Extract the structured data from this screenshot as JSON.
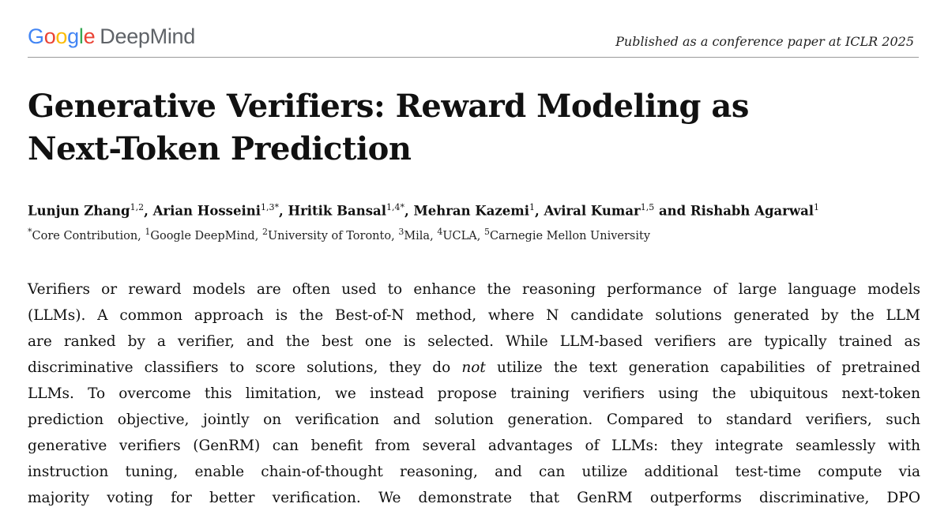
{
  "header": {
    "logo_parts": [
      "G",
      "o",
      "o",
      "g",
      "l",
      "e"
    ],
    "logo_suffix": "DeepMind",
    "venue": "Published as a conference paper at ICLR 2025"
  },
  "paper": {
    "title_line1": "Generative Verifiers: Reward Modeling as",
    "title_line2": "Next-Token Prediction",
    "authors": [
      {
        "name": "Lunjun Zhang",
        "sup": "1,2",
        "sep": ", "
      },
      {
        "name": "Arian Hosseini",
        "sup": "1,3*",
        "sep": ", "
      },
      {
        "name": "Hritik Bansal",
        "sup": "1,4*",
        "sep": ", "
      },
      {
        "name": "Mehran Kazemi",
        "sup": "1",
        "sep": ", "
      },
      {
        "name": "Aviral Kumar",
        "sup": "1,5",
        "sep": " and "
      },
      {
        "name": "Rishabh Agarwal",
        "sup": "1",
        "sep": ""
      }
    ],
    "affiliations": [
      {
        "sup": "*",
        "text": "Core Contribution, "
      },
      {
        "sup": "1",
        "text": "Google DeepMind, "
      },
      {
        "sup": "2",
        "text": "University of Toronto, "
      },
      {
        "sup": "3",
        "text": "Mila, "
      },
      {
        "sup": "4",
        "text": "UCLA, "
      },
      {
        "sup": "5",
        "text": "Carnegie Mellon University"
      }
    ],
    "abstract_lines": [
      "Verifiers or reward models are often used to enhance the reasoning performance of large language models",
      "(LLMs). A common approach is the Best-of-N method, where N candidate solutions generated by the LLM",
      "are ranked by a verifier, and the best one is selected. While LLM-based verifiers are typically trained as",
      [
        "discriminative classifiers to score solutions, they do ",
        "not",
        " utilize the text generation capabilities of pretrained"
      ],
      "LLMs. To overcome this limitation, we instead propose training verifiers using the ubiquitous next-token",
      "prediction objective, jointly on verification and solution generation. Compared to standard verifiers, such",
      "generative verifiers (GenRM) can benefit from several advantages of LLMs: they integrate seamlessly with",
      "instruction tuning, enable chain-of-thought reasoning, and can utilize additional test-time compute via",
      "majority voting for better verification. We demonstrate that GenRM outperforms discriminative, DPO"
    ]
  }
}
